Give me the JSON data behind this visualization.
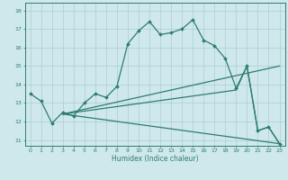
{
  "xlabel": "Humidex (Indice chaleur)",
  "bg_color": "#cfe8ec",
  "grid_color": "#aacdd4",
  "line_color": "#2e7d6e",
  "xlim": [
    -0.5,
    23.5
  ],
  "ylim": [
    10.7,
    18.4
  ],
  "yticks": [
    11,
    12,
    13,
    14,
    15,
    16,
    17,
    18
  ],
  "xticks": [
    0,
    1,
    2,
    3,
    4,
    5,
    6,
    7,
    8,
    9,
    10,
    11,
    12,
    13,
    14,
    15,
    16,
    17,
    18,
    19,
    20,
    21,
    22,
    23
  ],
  "line1_x": [
    0,
    1,
    2,
    3,
    4,
    5,
    6,
    7,
    8,
    9,
    10,
    11,
    12,
    13,
    14,
    15,
    16,
    17,
    18,
    19,
    20,
    21,
    22,
    23
  ],
  "line1_y": [
    13.5,
    13.1,
    11.9,
    12.5,
    12.3,
    13.0,
    13.5,
    13.3,
    13.9,
    16.2,
    16.9,
    17.4,
    16.7,
    16.8,
    17.0,
    17.5,
    16.4,
    16.1,
    15.4,
    13.8,
    15.0,
    11.5,
    11.7,
    10.8
  ],
  "line2_x": [
    3,
    23
  ],
  "line2_y": [
    12.4,
    15.0
  ],
  "line3_x": [
    3,
    19,
    20,
    21,
    22,
    23
  ],
  "line3_y": [
    12.4,
    13.7,
    15.0,
    11.5,
    11.7,
    10.8
  ],
  "line4_x": [
    3,
    23
  ],
  "line4_y": [
    12.4,
    10.8
  ]
}
